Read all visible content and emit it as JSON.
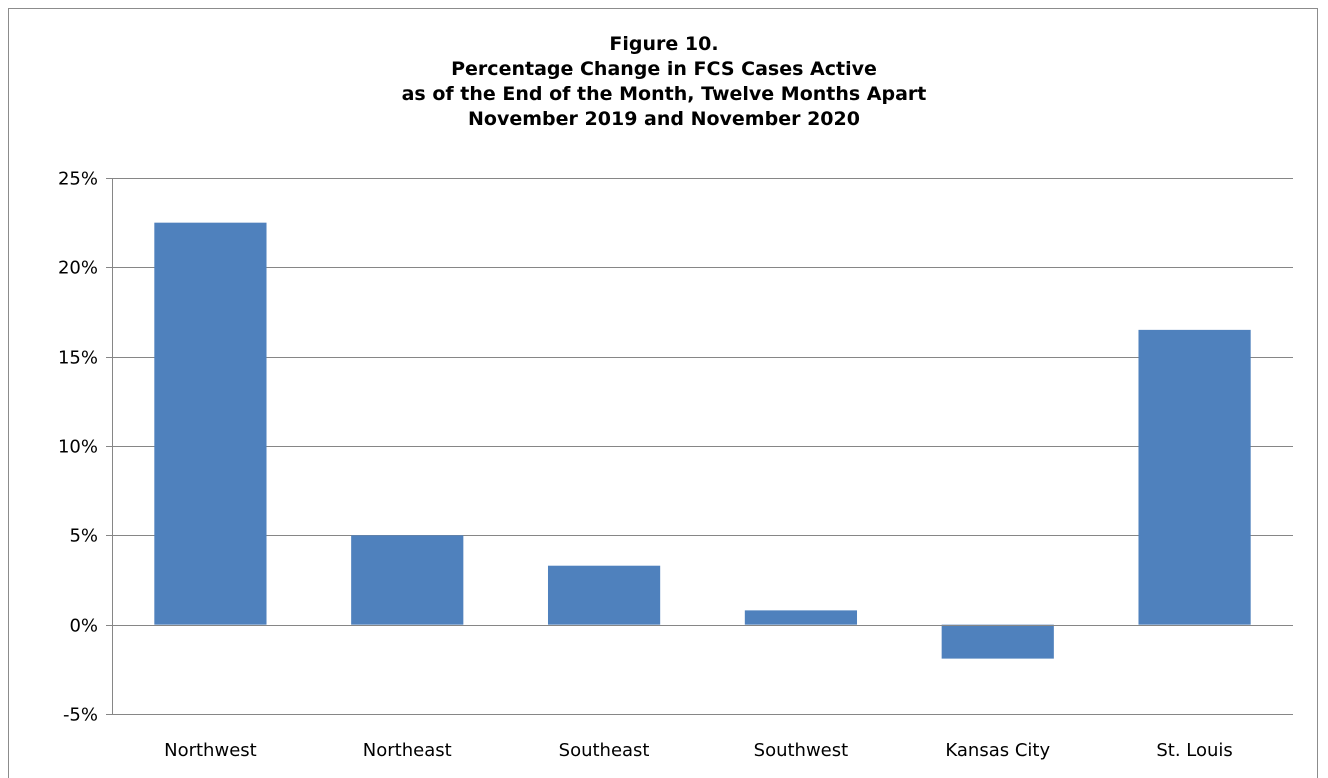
{
  "chart_data": {
    "type": "bar",
    "title_lines": [
      "Figure 10.",
      "Percentage Change in FCS Cases Active",
      "as of the End of the Month, Twelve Months Apart",
      "November 2019 and November 2020"
    ],
    "xlabel": "",
    "ylabel": "",
    "categories": [
      "Northwest",
      "Northeast",
      "Southeast",
      "Southwest",
      "Kansas City",
      "St. Louis"
    ],
    "values": [
      22.5,
      5.0,
      3.3,
      0.8,
      -1.9,
      16.5
    ],
    "value_unit": "%",
    "ylim": [
      -5,
      25
    ],
    "yticks": [
      25,
      20,
      15,
      10,
      5,
      0,
      -5
    ],
    "ytick_labels": [
      "25%",
      "20%",
      "15%",
      "10%",
      "5%",
      "0%",
      "-5%"
    ],
    "grid": true,
    "legend": "none",
    "bar_color": "#4f81bd",
    "grid_color": "#868686"
  }
}
